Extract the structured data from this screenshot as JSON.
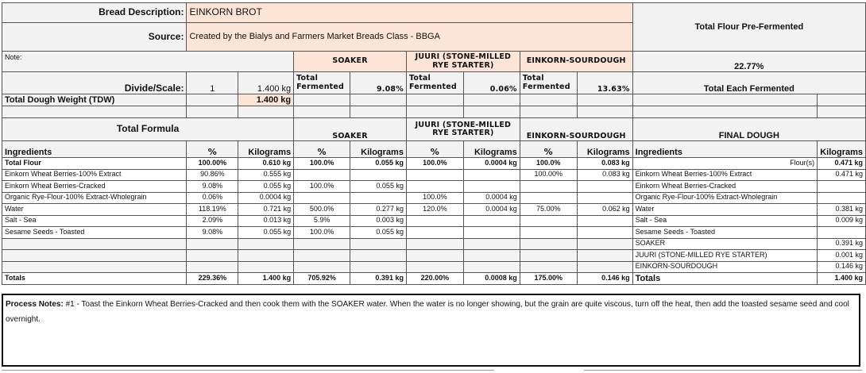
{
  "header": {
    "bread_description_label": "Bread Description:",
    "bread_description": "EINKORN BROT",
    "source_label": "Source:",
    "source": "Created by the Bialys and Farmers Market Breads Class - BBGA",
    "total_flour_prefermented_label": "Total Flour Pre-Fermented",
    "total_flour_prefermented_value": "22.77%",
    "note_label": "Note:",
    "divide_scale_label": "Divide/Scale:",
    "divide_scale_value": "1",
    "divide_scale_weight": "1.400 kg",
    "tdw_label": "Total Dough Weight (TDW)",
    "tdw_value": "1.400 kg",
    "total_each_fermented_label": "Total Each Fermented",
    "preferments": [
      {
        "name": "SOAKER",
        "total_label": "Total Fermented",
        "value": "9.08%"
      },
      {
        "name": "JUURI (STONE-MILLED RYE STARTER)",
        "total_label": "Total Fermented",
        "value": "0.06%"
      },
      {
        "name": "EINKORN-SOURDOUGH",
        "total_label": "Total Fermented",
        "value": "13.63%"
      }
    ]
  },
  "formula": {
    "total_formula_label": "Total Formula",
    "final_dough_label": "FINAL DOUGH",
    "columns": [
      "Ingredients",
      "%",
      "Kilograms",
      "%",
      "Kilograms",
      "%",
      "Kilograms",
      "%",
      "Kilograms",
      "Ingredients",
      "Kilograms"
    ],
    "rows": [
      [
        "Total Flour",
        "100.00%",
        "0.610 kg",
        "100.0%",
        "0.055 kg",
        "100.0%",
        "0.0004 kg",
        "100.0%",
        "0.083 kg",
        "Flour(s)",
        "0.471 kg"
      ],
      [
        "Einkorn Wheat Berries-100% Extract",
        "90.86%",
        "0.555 kg",
        "",
        "",
        "",
        "",
        "100.00%",
        "0.083 kg",
        "Einkorn Wheat Berries-100% Extract",
        "0.471 kg"
      ],
      [
        "Einkorn Wheat Berries-Cracked",
        "9.08%",
        "0.055 kg",
        "100.0%",
        "0.055 kg",
        "",
        "",
        "",
        "",
        "Einkorn Wheat Berries-Cracked",
        ""
      ],
      [
        "Organic Rye-Flour-100% Extract-Wholegrain",
        "0.06%",
        "0.0004 kg",
        "",
        "",
        "100.0%",
        "0.0004 kg",
        "",
        "",
        "Organic Rye-Flour-100% Extract-Wholegrain",
        ""
      ],
      [
        "Water",
        "118.19%",
        "0.721 kg",
        "500.0%",
        "0.277 kg",
        "120.0%",
        "0.0004 kg",
        "75.00%",
        "0.062 kg",
        "Water",
        "0.381 kg"
      ],
      [
        "Salt - Sea",
        "2.09%",
        "0.013 kg",
        "5.9%",
        "0.003 kg",
        "",
        "",
        "",
        "",
        "Salt - Sea",
        "0.009 kg"
      ],
      [
        "Sesame Seeds - Toasted",
        "9.08%",
        "0.055 kg",
        "100.0%",
        "0.055 kg",
        "",
        "",
        "",
        "",
        "Sesame Seeds - Toasted",
        ""
      ],
      [
        "",
        "",
        "",
        "",
        "",
        "",
        "",
        "",
        "",
        "SOAKER",
        "0.391 kg"
      ],
      [
        "",
        "",
        "",
        "",
        "",
        "",
        "",
        "",
        "",
        "JUURI  (STONE-MILLED RYE STARTER)",
        "0.001 kg"
      ],
      [
        "",
        "",
        "",
        "",
        "",
        "",
        "",
        "",
        "",
        "EINKORN-SOURDOUGH",
        "0.146 kg"
      ],
      [
        "Totals",
        "229.36%",
        "1.400 kg",
        "705.92%",
        "0.391 kg",
        "220.00%",
        "0.0008 kg",
        "175.00%",
        "0.146 kg",
        "Totals",
        "1.400 kg"
      ]
    ]
  },
  "process_notes": {
    "label": "Process Notes:",
    "text": " #1  - Toast the  Einkorn Wheat Berries-Cracked and then cook them with the SOAKER water.  When the water is no longer showing, but the grain are quite viscous, turn off the heat, then add the toasted sesame seed and cool overnight."
  }
}
